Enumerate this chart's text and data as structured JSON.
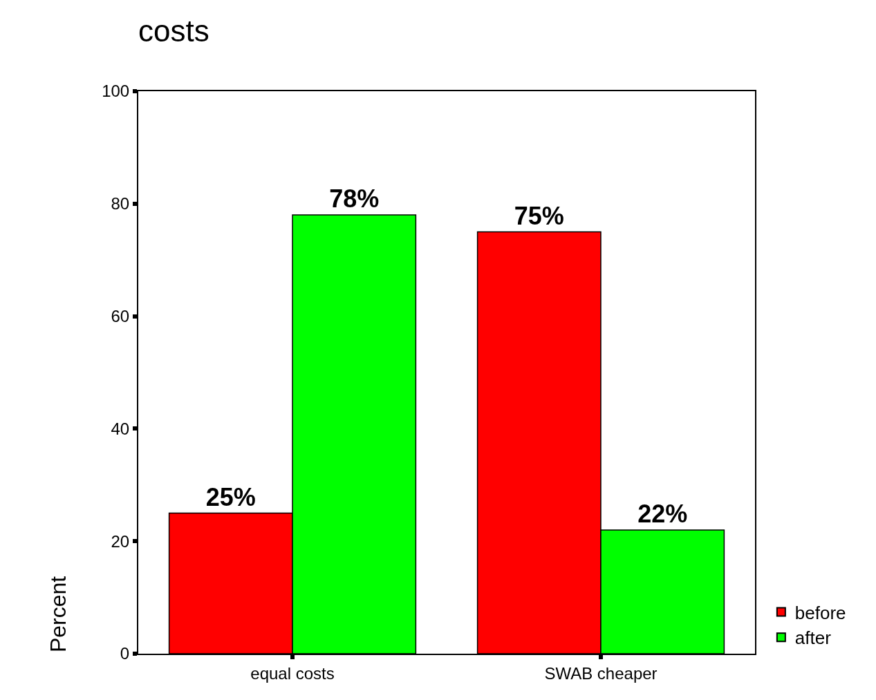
{
  "chart_data": {
    "type": "bar",
    "title": "costs",
    "ylabel": "Percent",
    "categories": [
      "equal costs",
      "SWAB cheaper"
    ],
    "series": [
      {
        "name": "before",
        "color": "#ff0000",
        "values": [
          25,
          75
        ],
        "value_labels": [
          "25%",
          "75%"
        ]
      },
      {
        "name": "after",
        "color": "#00ff00",
        "values": [
          78,
          22
        ],
        "value_labels": [
          "78%",
          "22%"
        ]
      }
    ],
    "ylim": [
      0,
      100
    ],
    "yticks": [
      0,
      20,
      40,
      60,
      80,
      100
    ],
    "legend": "bottom right"
  }
}
